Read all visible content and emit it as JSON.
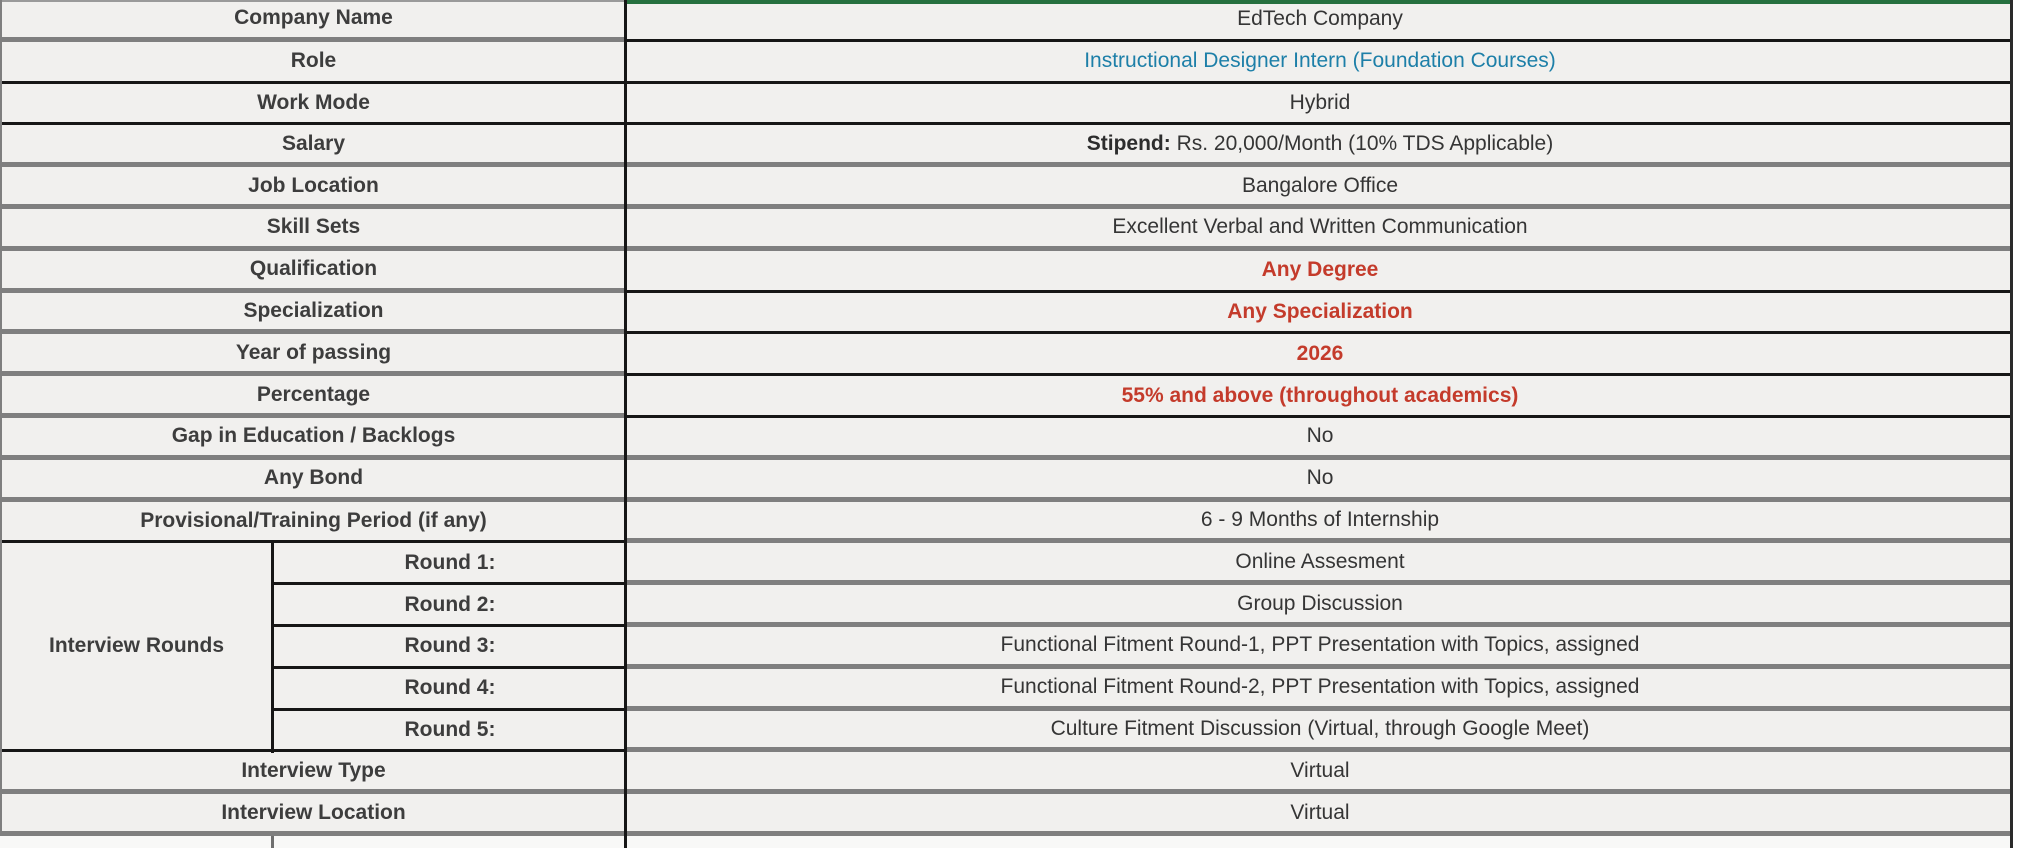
{
  "document_title": "Job posting details table",
  "colors": {
    "accent_blue": "#1d7fa8",
    "accent_red": "#c43b2b",
    "top_border_green": "#26703f",
    "grid_gray": "#7f7f7f",
    "grid_black": "#161616",
    "cell_background": "#f1f0ee"
  },
  "table": {
    "rows": [
      {
        "label": "Company Name",
        "value": "EdTech Company"
      },
      {
        "label": "Role",
        "value": "Instructional Designer Intern (Foundation Courses)"
      },
      {
        "label": "Work Mode",
        "value": "Hybrid"
      },
      {
        "label": "Salary",
        "value_bold": "Stipend:",
        "value_rest": " Rs. 20,000/Month (10% TDS Applicable)"
      },
      {
        "label": "Job Location",
        "value": "Bangalore Office"
      },
      {
        "label": "Skill Sets",
        "value": "Excellent Verbal and Written Communication"
      },
      {
        "label": "Qualification",
        "value": "Any Degree"
      },
      {
        "label": "Specialization",
        "value": "Any Specialization"
      },
      {
        "label": "Year of passing",
        "value": "2026"
      },
      {
        "label": "Percentage",
        "value": "55% and above (throughout academics)"
      },
      {
        "label": "Gap in Education / Backlogs",
        "value": "No"
      },
      {
        "label": "Any Bond",
        "value": "No"
      },
      {
        "label": "Provisional/Training Period (if any)",
        "value": "6 - 9 Months of Internship"
      }
    ],
    "interview_rounds": {
      "section_label": "Interview Rounds",
      "rounds": [
        {
          "label": "Round 1:",
          "value": "Online Assesment"
        },
        {
          "label": "Round 2:",
          "value": "Group Discussion"
        },
        {
          "label": "Round 3:",
          "value": "Functional Fitment Round-1, PPT Presentation with Topics, assigned"
        },
        {
          "label": "Round 4:",
          "value": "Functional Fitment Round-2, PPT Presentation with Topics, assigned"
        },
        {
          "label": "Round 5:",
          "value": "Culture Fitment Discussion (Virtual, through Google Meet)"
        }
      ]
    },
    "tail_rows": [
      {
        "label": "Interview Type",
        "value": "Virtual"
      },
      {
        "label": "Interview Location",
        "value": "Virtual"
      }
    ]
  }
}
